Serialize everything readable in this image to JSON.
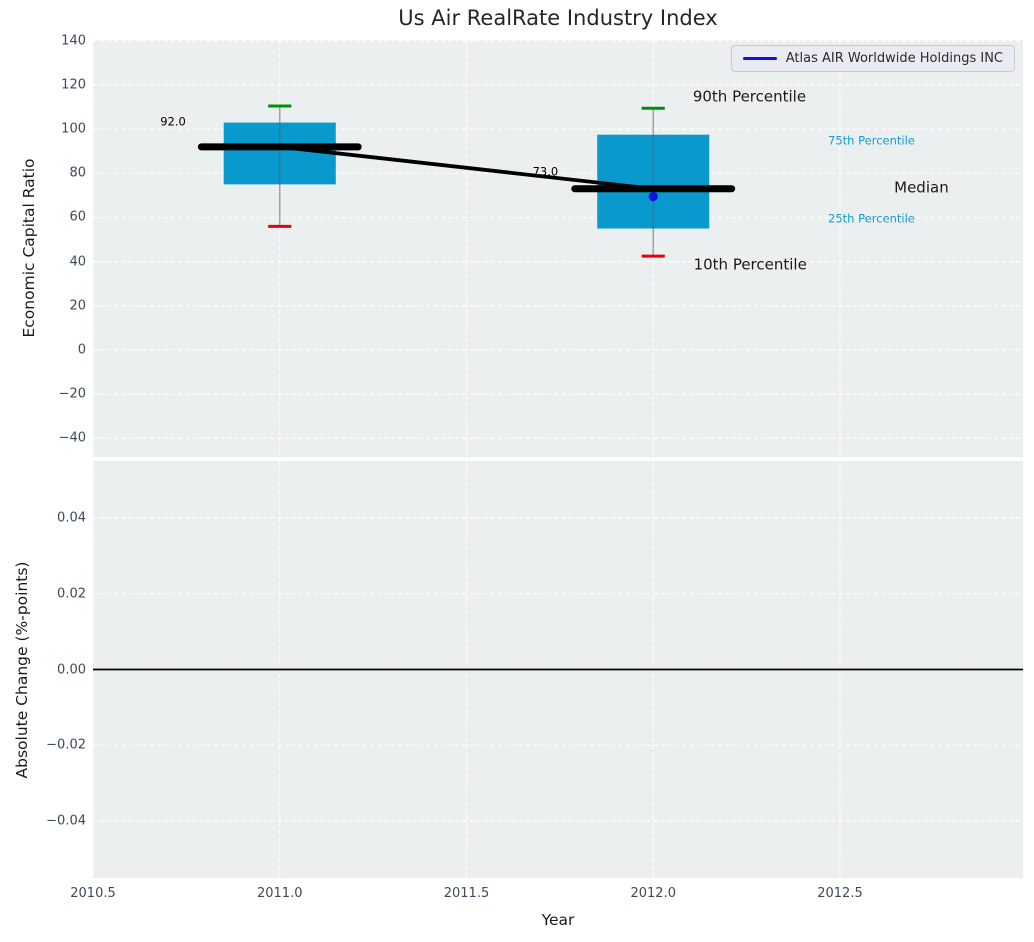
{
  "figure": {
    "title": "Us Air RealRate Industry Index"
  },
  "colors": {
    "plot_bg": "#ebeff0",
    "grid": "#ffffff",
    "box_fill": "#0a99cc",
    "cap_high": "#008f0a",
    "cap_low": "#e8000b",
    "whisker": "#606060",
    "median": "#000000",
    "trend": "#000000",
    "company": "#0f0fe6",
    "tick_text": "#3b4a5c",
    "cyan_text": "#149dd2",
    "dark_text": "#1a1a1a"
  },
  "chart_data": [
    {
      "type": "boxplot",
      "title": "Us Air RealRate Industry Index",
      "ylabel": "Economic Capital Ratio",
      "xlim": [
        2010.5,
        2012.99
      ],
      "ylim": [
        -48.5,
        140.4
      ],
      "grid": true,
      "legend_position": "upper right",
      "legend": {
        "label": "Atlas AIR Worldwide Holdings INC",
        "color": "#0f0fe6"
      },
      "xticks": {
        "values": [
          2010.5,
          2011.0,
          2011.5,
          2012.0,
          2012.5
        ],
        "labels": []
      },
      "yticks": {
        "values": [
          140,
          120,
          100,
          80,
          60,
          40,
          20,
          0,
          -20,
          -40
        ],
        "labels": [
          "140",
          "120",
          "100",
          "80",
          "60",
          "40",
          "20",
          "0",
          "−20",
          "−40"
        ]
      },
      "box_width": 0.3,
      "median_width": 0.42,
      "cap_width": 0.062,
      "boxes": [
        {
          "x": 2011,
          "p10": 56,
          "q1": 75,
          "median": 92,
          "q3": 103,
          "p90": 110.5,
          "median_label": "92.0"
        },
        {
          "x": 2012,
          "p10": 42.5,
          "q1": 55,
          "median": 73,
          "q3": 97.5,
          "p90": 109.5,
          "median_label": "73.0"
        }
      ],
      "median_trend": [
        [
          2011,
          92
        ],
        [
          2012,
          73
        ]
      ],
      "company_series": {
        "name": "Atlas AIR Worldwide Holdings INC",
        "points": [
          [
            2012,
            69.5
          ]
        ]
      },
      "annotations": [
        {
          "text": "92.0",
          "x": 2010.68,
          "y": 103.2,
          "style": "value"
        },
        {
          "text": "73.0",
          "x": 2011.677,
          "y": 80.4,
          "style": "value"
        },
        {
          "text": "90th Percentile",
          "x": 2012.106,
          "y": 114.6,
          "style": "label-large"
        },
        {
          "text": "75th Percentile",
          "x": 2012.468,
          "y": 94.6,
          "style": "label-cyan"
        },
        {
          "text": "Median",
          "x": 2012.645,
          "y": 73.4,
          "style": "label-large"
        },
        {
          "text": "25th Percentile",
          "x": 2012.468,
          "y": 59.3,
          "style": "label-cyan"
        },
        {
          "text": "10th Percentile",
          "x": 2012.108,
          "y": 38.5,
          "style": "label-large"
        }
      ]
    },
    {
      "type": "line",
      "ylabel": "Absolute Change (%-points)",
      "xlabel": "Year",
      "xlim": [
        2010.5,
        2012.99
      ],
      "ylim": [
        -0.055,
        0.055
      ],
      "grid": true,
      "zero_line": 0.0,
      "xticks": {
        "values": [
          2010.5,
          2011.0,
          2011.5,
          2012.0,
          2012.5
        ],
        "labels": [
          "2010.5",
          "2011.0",
          "2011.5",
          "2012.0",
          "2012.5"
        ]
      },
      "yticks": {
        "values": [
          0.04,
          0.02,
          0.0,
          -0.02,
          -0.04
        ],
        "labels": [
          "0.04",
          "0.02",
          "0.00",
          "−0.02",
          "−0.04"
        ]
      },
      "series": []
    }
  ]
}
